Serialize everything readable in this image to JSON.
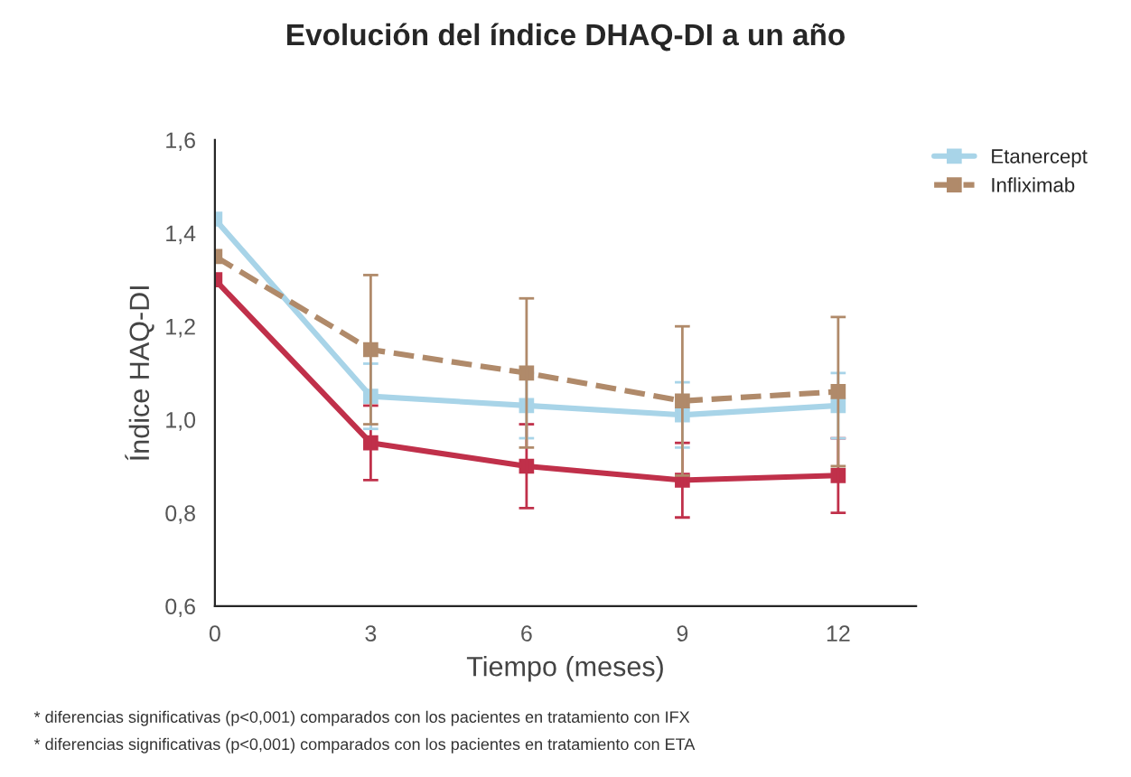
{
  "chart_data": {
    "type": "line",
    "title": "Evolución del índice DHAQ-DI a un año",
    "xlabel": "Tiempo (meses)",
    "ylabel": "Índice HAQ-DI",
    "x": [
      0,
      3,
      6,
      9,
      12
    ],
    "series": [
      {
        "color": "#c0304a",
        "values": [
          1.3,
          0.95,
          0.9,
          0.87,
          0.88
        ],
        "errors": [
          null,
          0.08,
          0.09,
          0.08,
          0.08
        ],
        "line_style": "solid"
      },
      {
        "name": "Etanercept",
        "color": "#a8d4e8",
        "values": [
          1.43,
          1.05,
          1.03,
          1.01,
          1.03
        ],
        "errors": [
          null,
          0.07,
          0.07,
          0.07,
          0.07
        ],
        "line_style": "solid"
      },
      {
        "name": "Infliximab",
        "color": "#b08a6a",
        "values": [
          1.35,
          1.15,
          1.1,
          1.04,
          1.06
        ],
        "errors": [
          null,
          0.16,
          0.16,
          0.16,
          0.16
        ],
        "line_style": "dashed"
      }
    ],
    "xlim": [
      0,
      13.5
    ],
    "xticks": [
      0,
      3,
      6,
      9,
      12
    ],
    "ylim": [
      0.6,
      1.6
    ],
    "yticks": [
      {
        "value": 0.6,
        "label": "0,6"
      },
      {
        "value": 0.8,
        "label": "0,8"
      },
      {
        "value": 1.0,
        "label": "1,0"
      },
      {
        "value": 1.2,
        "label": "1,2"
      },
      {
        "value": 1.4,
        "label": "1,4"
      },
      {
        "value": 1.6,
        "label": "1,6"
      }
    ],
    "marker": "square",
    "grid": false,
    "legend": "top right",
    "annotations": [
      "* diferencias significativas (p<0,001) comparados con los pacientes en tratamiento con IFX",
      "* diferencias significativas (p<0,001) comparados con los pacientes en tratamiento con ETA"
    ]
  }
}
